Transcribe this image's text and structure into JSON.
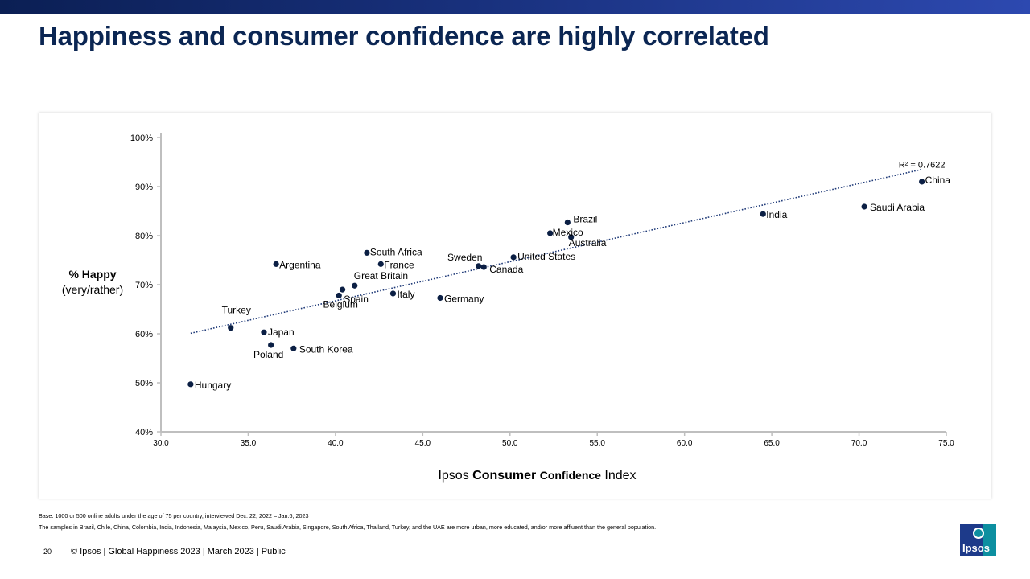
{
  "title": "Happiness and consumer confidence are highly correlated",
  "chart_data": {
    "type": "scatter",
    "xlabel_parts": [
      "Ipsos ",
      "Consumer",
      " ",
      "Confidence",
      " Index"
    ],
    "ylabel_main": "% Happy",
    "ylabel_sub": "(very/rather)",
    "xlim": [
      30,
      75
    ],
    "ylim": [
      40,
      100
    ],
    "x_ticks": [
      "30.0",
      "35.0",
      "40.0",
      "45.0",
      "50.0",
      "55.0",
      "60.0",
      "65.0",
      "70.0",
      "75.0"
    ],
    "y_ticks": [
      "40%",
      "50%",
      "60%",
      "70%",
      "80%",
      "90%",
      "100%"
    ],
    "trendline": {
      "type": "linear",
      "from": [
        31.7,
        60.1
      ],
      "to": [
        73.6,
        93.5
      ],
      "r2_label": "R² = 0.7622"
    },
    "points": [
      {
        "label": "Hungary",
        "x": 31.7,
        "y": 49.7
      },
      {
        "label": "Turkey",
        "x": 34.0,
        "y": 61.2
      },
      {
        "label": "Argentina",
        "x": 36.6,
        "y": 74.2
      },
      {
        "label": "Japan",
        "x": 35.9,
        "y": 60.3
      },
      {
        "label": "Poland",
        "x": 36.3,
        "y": 57.7
      },
      {
        "label": "South Korea",
        "x": 37.6,
        "y": 57.0
      },
      {
        "label": "Belgium",
        "x": 40.2,
        "y": 67.8
      },
      {
        "label": "Spain",
        "x": 40.4,
        "y": 69.0
      },
      {
        "label": "Great Britain",
        "x": 41.1,
        "y": 69.8
      },
      {
        "label": "South Africa",
        "x": 41.8,
        "y": 76.5
      },
      {
        "label": "France",
        "x": 42.6,
        "y": 74.2
      },
      {
        "label": "Italy",
        "x": 43.3,
        "y": 68.2
      },
      {
        "label": "Germany",
        "x": 46.0,
        "y": 67.3
      },
      {
        "label": "Sweden",
        "x": 48.2,
        "y": 73.8
      },
      {
        "label": "Canada",
        "x": 48.5,
        "y": 73.6
      },
      {
        "label": "United States",
        "x": 50.2,
        "y": 75.6
      },
      {
        "label": "Mexico",
        "x": 52.3,
        "y": 80.5
      },
      {
        "label": "Brazil",
        "x": 53.3,
        "y": 82.7
      },
      {
        "label": "Australia",
        "x": 53.5,
        "y": 79.7
      },
      {
        "label": "India",
        "x": 64.5,
        "y": 84.4
      },
      {
        "label": "Saudi Arabia",
        "x": 70.3,
        "y": 85.9
      },
      {
        "label": "China",
        "x": 73.6,
        "y": 91.0
      }
    ],
    "marker_color": "#0b1f44",
    "trend_color": "#1f3a78"
  },
  "notes": {
    "base": "Base: 1000 or 500 online adults under the age of 75 per country, interviewed Dec. 22, 2022 – Jan.6, 2023",
    "samples": "The samples in Brazil, Chile, China, Colombia, India, Indonesia, Malaysia, Mexico, Peru, Saudi Arabia, Singapore, South Africa, Thailand, Turkey, and the UAE are more urban, more educated, and/or more affluent than the general population."
  },
  "footer": {
    "page_number": "20",
    "text": "© Ipsos | Global Happiness 2023 | March 2023 | Public"
  },
  "logo": {
    "text": "Ipsos",
    "blue": "#1d3a8a",
    "teal": "#0d8fa0"
  }
}
